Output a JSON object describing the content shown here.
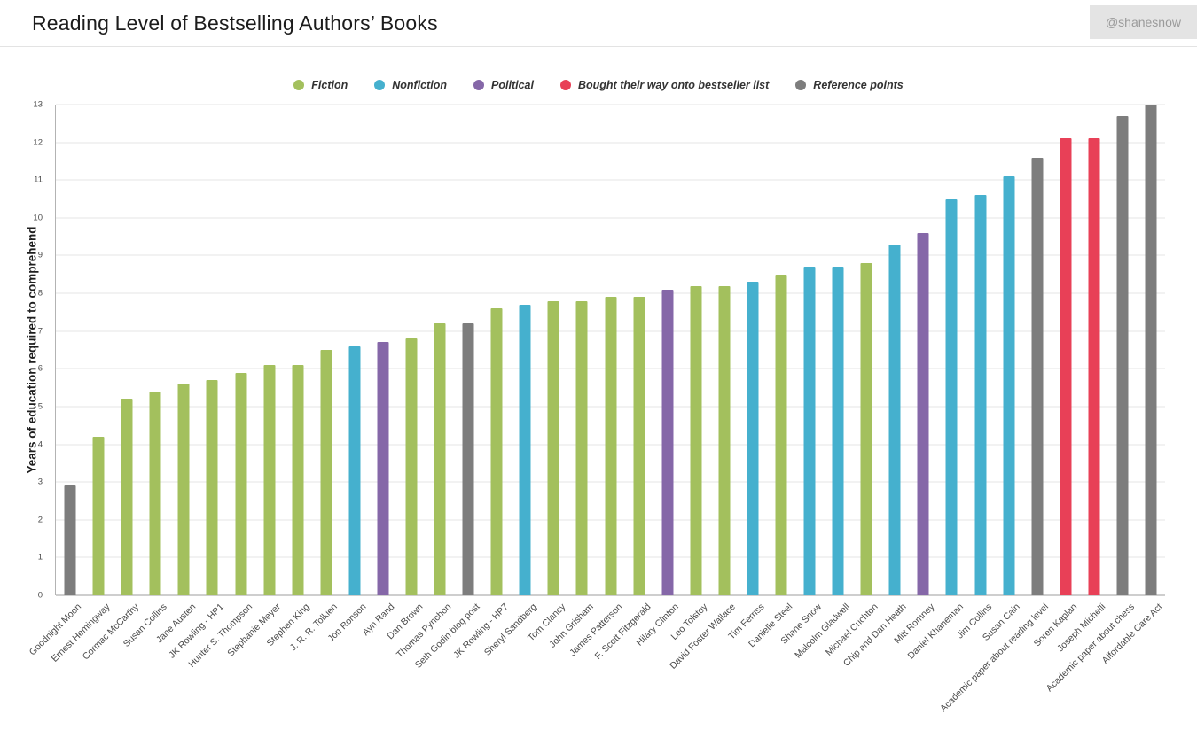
{
  "header": {
    "title": "Reading Level of Bestselling Authors’ Books",
    "badge": "@shanesnow"
  },
  "chart_data": {
    "type": "bar",
    "title": "Reading Level of Bestselling Authors’ Books",
    "xlabel": "",
    "ylabel": "Years of education required to comprehend",
    "ylim": [
      0,
      13
    ],
    "ytick_step": 1,
    "grid": true,
    "legend_position": "top",
    "legend": [
      {
        "key": "fiction",
        "label": "Fiction",
        "color": "#a3c05d"
      },
      {
        "key": "nonfiction",
        "label": "Nonfiction",
        "color": "#45b0ce"
      },
      {
        "key": "political",
        "label": "Political",
        "color": "#8567a8"
      },
      {
        "key": "bought",
        "label": "Bought their way onto bestseller list",
        "color": "#e84057"
      },
      {
        "key": "reference",
        "label": "Reference points",
        "color": "#7d7d7d"
      }
    ],
    "bars": [
      {
        "label": "Goodnight Moon",
        "value": 2.9,
        "category": "reference"
      },
      {
        "label": "Ernest Hemingway",
        "value": 4.2,
        "category": "fiction"
      },
      {
        "label": "Cormac McCarthy",
        "value": 5.2,
        "category": "fiction"
      },
      {
        "label": "Susan Collins",
        "value": 5.4,
        "category": "fiction"
      },
      {
        "label": "Jane Austen",
        "value": 5.6,
        "category": "fiction"
      },
      {
        "label": "JK Rowling - HP1",
        "value": 5.7,
        "category": "fiction"
      },
      {
        "label": "Hunter S. Thompson",
        "value": 5.9,
        "category": "fiction"
      },
      {
        "label": "Stephanie Meyer",
        "value": 6.1,
        "category": "fiction"
      },
      {
        "label": "Stephen King",
        "value": 6.1,
        "category": "fiction"
      },
      {
        "label": "J. R. R. Tolkien",
        "value": 6.5,
        "category": "fiction"
      },
      {
        "label": "Jon Ronson",
        "value": 6.6,
        "category": "nonfiction"
      },
      {
        "label": "Ayn Rand",
        "value": 6.7,
        "category": "political"
      },
      {
        "label": "Dan Brown",
        "value": 6.8,
        "category": "fiction"
      },
      {
        "label": "Thomas Pynchon",
        "value": 7.2,
        "category": "fiction"
      },
      {
        "label": "Seth Godin blog post",
        "value": 7.2,
        "category": "reference"
      },
      {
        "label": "JK Rowling - HP7",
        "value": 7.6,
        "category": "fiction"
      },
      {
        "label": "Sheryl Sandberg",
        "value": 7.7,
        "category": "nonfiction"
      },
      {
        "label": "Tom Clancy",
        "value": 7.8,
        "category": "fiction"
      },
      {
        "label": "John Grisham",
        "value": 7.8,
        "category": "fiction"
      },
      {
        "label": "James Patterson",
        "value": 7.9,
        "category": "fiction"
      },
      {
        "label": "F. Scott Fitzgerald",
        "value": 7.9,
        "category": "fiction"
      },
      {
        "label": "Hilary Clinton",
        "value": 8.1,
        "category": "political"
      },
      {
        "label": "Leo Tolstoy",
        "value": 8.2,
        "category": "fiction"
      },
      {
        "label": "David Foster Wallace",
        "value": 8.2,
        "category": "fiction"
      },
      {
        "label": "Tim Ferriss",
        "value": 8.3,
        "category": "nonfiction"
      },
      {
        "label": "Danielle Steel",
        "value": 8.5,
        "category": "fiction"
      },
      {
        "label": "Shane Snow",
        "value": 8.7,
        "category": "nonfiction"
      },
      {
        "label": "Malcolm Gladwell",
        "value": 8.7,
        "category": "nonfiction"
      },
      {
        "label": "Michael Crichton",
        "value": 8.8,
        "category": "fiction"
      },
      {
        "label": "Chip and Dan Heath",
        "value": 9.3,
        "category": "nonfiction"
      },
      {
        "label": "Mitt Romney",
        "value": 9.6,
        "category": "political"
      },
      {
        "label": "Daniel Khaneman",
        "value": 10.5,
        "category": "nonfiction"
      },
      {
        "label": "Jim Collins",
        "value": 10.6,
        "category": "nonfiction"
      },
      {
        "label": "Susan Cain",
        "value": 11.1,
        "category": "nonfiction"
      },
      {
        "label": "Academic paper about reading level",
        "value": 11.6,
        "category": "reference"
      },
      {
        "label": "Soren Kaplan",
        "value": 12.1,
        "category": "bought"
      },
      {
        "label": "Joseph Michelli",
        "value": 12.1,
        "category": "bought"
      },
      {
        "label": "Academic paper about chess",
        "value": 12.7,
        "category": "reference"
      },
      {
        "label": "Affordable Care Act",
        "value": 13.0,
        "category": "reference"
      }
    ]
  }
}
